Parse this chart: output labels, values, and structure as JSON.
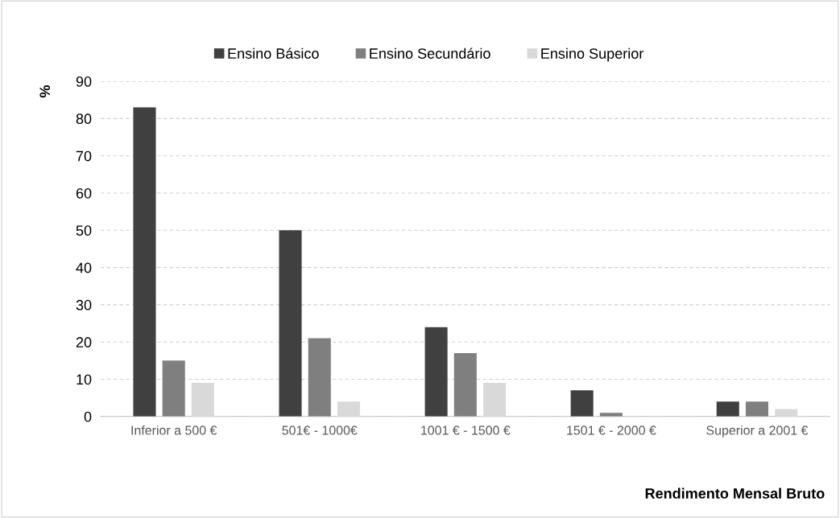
{
  "chart_data": {
    "type": "bar",
    "xlabel": "Rendimento Mensal Bruto",
    "ylabel": "%",
    "categories": [
      "Inferior a 500 €",
      "501€ - 1000€",
      "1001 € - 1500 €",
      "1501 € - 2000 €",
      "Superior a 2001 €"
    ],
    "series": [
      {
        "name": "Ensino Básico",
        "color": "#404040",
        "values": [
          83,
          50,
          24,
          7,
          4
        ]
      },
      {
        "name": "Ensino Secundário",
        "color": "#7f7f7f",
        "values": [
          15,
          21,
          17,
          1,
          4
        ]
      },
      {
        "name": "Ensino Superior",
        "color": "#d9d9d9",
        "values": [
          9,
          4,
          9,
          0,
          2
        ]
      }
    ],
    "ylim": [
      0,
      90
    ],
    "yticks": [
      0,
      10,
      20,
      30,
      40,
      50,
      60,
      70,
      80,
      90
    ],
    "grid": "y",
    "legend": "top"
  }
}
